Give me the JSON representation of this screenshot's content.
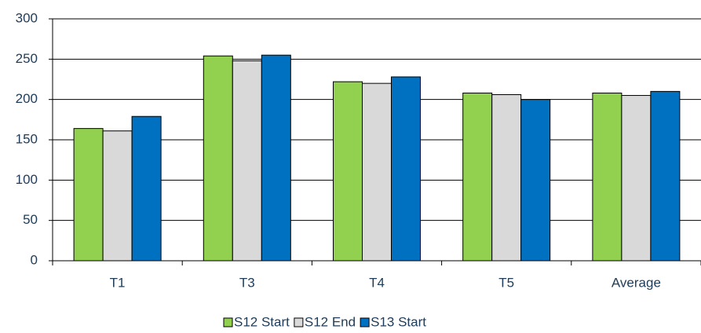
{
  "chart_data": {
    "type": "bar",
    "categories": [
      "T1",
      "T3",
      "T4",
      "T5",
      "Average"
    ],
    "series": [
      {
        "name": "S12 Start",
        "color": "#92d050",
        "values": [
          164,
          254,
          222,
          208,
          208
        ]
      },
      {
        "name": "S12 End",
        "color": "#d9d9d9",
        "values": [
          161,
          248,
          220,
          206,
          205
        ]
      },
      {
        "name": "S13 Start",
        "color": "#0070c0",
        "values": [
          179,
          255,
          228,
          200,
          210
        ]
      }
    ],
    "ylim": [
      0,
      300
    ],
    "yticks": [
      0,
      50,
      100,
      150,
      200,
      250,
      300
    ],
    "grid": true,
    "legend": "bottom"
  }
}
